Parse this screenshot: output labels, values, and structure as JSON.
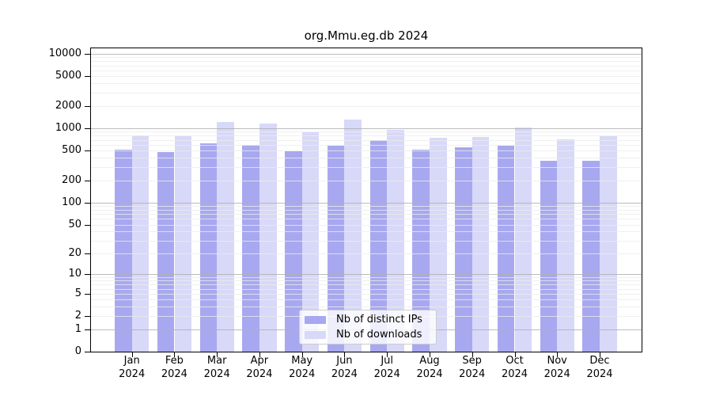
{
  "title": "org.Mmu.eg.db 2024",
  "chart_data": {
    "type": "bar",
    "title": "org.Mmu.eg.db 2024",
    "categories": [
      "Jan",
      "Feb",
      "Mar",
      "Apr",
      "May",
      "Jun",
      "Jul",
      "Aug",
      "Sep",
      "Oct",
      "Nov",
      "Dec"
    ],
    "year_label": "2024",
    "series": [
      {
        "name": "Nb of distinct IPs",
        "color": "#a8a8f0",
        "values": [
          510,
          480,
          630,
          600,
          490,
          590,
          690,
          515,
          550,
          590,
          370,
          365
        ]
      },
      {
        "name": "Nb of downloads",
        "color": "#d8d8f8",
        "values": [
          800,
          780,
          1210,
          1150,
          880,
          1300,
          945,
          740,
          770,
          1020,
          715,
          780
        ]
      }
    ],
    "xlabel": "",
    "ylabel": "",
    "yscale": "log10(value+1)",
    "yticks": [
      10000,
      5000,
      2000,
      1000,
      500,
      200,
      100,
      50,
      20,
      10,
      5,
      2,
      1,
      0
    ],
    "major_gridlines": [
      1,
      10,
      100,
      1000,
      10000
    ],
    "ylim": [
      0,
      11800
    ],
    "grid": true,
    "legend_position": "lower center"
  }
}
